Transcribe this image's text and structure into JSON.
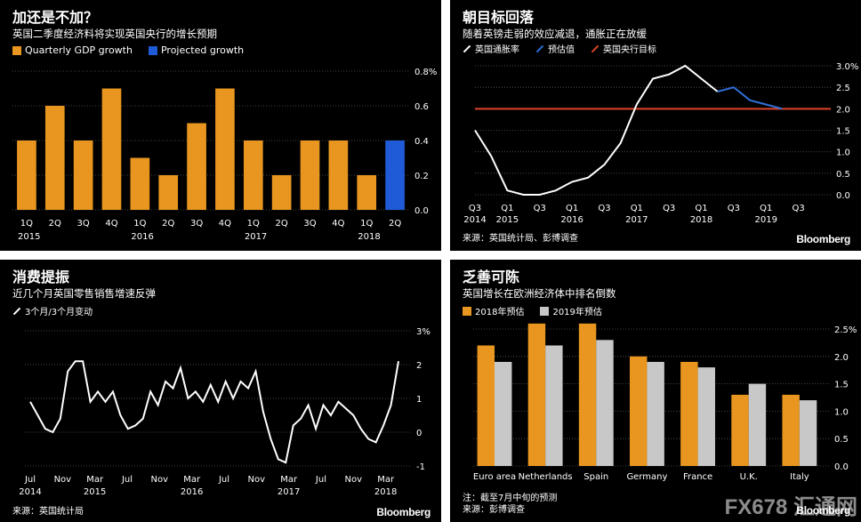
{
  "watermark": "FX678 汇通网",
  "panels": [
    {
      "title": "加还是不加？",
      "subtitle": "英国二季度经济料将实现英国央行的增长预期",
      "legend": [
        "Quarterly GDP growth",
        "Projected growth"
      ],
      "source": "",
      "brand": ""
    },
    {
      "title": "朝目标回落",
      "subtitle": "随着英镑走弱的效应减退，通胀正在放缓",
      "legend": [
        "英国通胀率",
        "预估值",
        "英国央行目标"
      ],
      "source": "来源：英国统计局、彭博调查",
      "brand": "Bloomberg"
    },
    {
      "title": "消费提振",
      "subtitle": "近几个月英国零售销售增速反弹",
      "legend": [
        "3个月/3个月变动"
      ],
      "source": "来源：英国统计局",
      "brand": "Bloomberg"
    },
    {
      "title": "乏善可陈",
      "subtitle": "英国增长在欧洲经济体中排名倒数",
      "legend": [
        "2018年预估",
        "2019年预估"
      ],
      "note": "注：截至7月中旬的预测",
      "source": "来源：彭博调查",
      "brand": "Bloomberg"
    }
  ],
  "chart_data": [
    {
      "type": "bar",
      "categories": [
        "1Q",
        "2Q",
        "3Q",
        "4Q",
        "1Q",
        "2Q",
        "3Q",
        "4Q",
        "1Q",
        "2Q",
        "3Q",
        "4Q",
        "1Q",
        "2Q"
      ],
      "year_labels": [
        "2015",
        "2016",
        "2017",
        "2018"
      ],
      "series": [
        {
          "name": "Quarterly GDP growth",
          "values": [
            0.4,
            0.6,
            0.4,
            0.7,
            0.3,
            0.2,
            0.5,
            0.7,
            0.4,
            0.2,
            0.4,
            0.4,
            0.2,
            null
          ]
        },
        {
          "name": "Projected growth",
          "values": [
            null,
            null,
            null,
            null,
            null,
            null,
            null,
            null,
            null,
            null,
            null,
            null,
            null,
            0.4
          ]
        }
      ],
      "colors": [
        "#e8961f",
        "#1f5bd6"
      ],
      "yticks": [
        "0.8%",
        "0.6",
        "0.4",
        "0.2",
        "0.0"
      ],
      "ylim": [
        0,
        0.8
      ]
    },
    {
      "type": "line",
      "x_ticks": [
        "Q3",
        "Q1",
        "Q3",
        "Q1",
        "Q3",
        "Q1",
        "Q3",
        "Q1",
        "Q3",
        "Q1",
        "Q3"
      ],
      "x_year_labels": [
        "2014",
        "2015",
        "2016",
        "2017",
        "2018",
        "2019"
      ],
      "series": [
        {
          "name": "英国通胀率",
          "values": [
            1.5,
            0.9,
            0.1,
            0.0,
            0.0,
            0.1,
            0.3,
            0.4,
            0.7,
            1.2,
            2.1,
            2.7,
            2.8,
            3.0,
            2.7,
            2.4
          ]
        },
        {
          "name": "预估值",
          "values": [
            2.4,
            2.5,
            2.2,
            2.1,
            2.0
          ]
        },
        {
          "name": "英国央行目标",
          "values": [
            2.0
          ]
        }
      ],
      "colors": [
        "#ffffff",
        "#2f6fd8",
        "#e0432b"
      ],
      "yticks": [
        "3.0%",
        "2.5",
        "2.0",
        "1.5",
        "1.0",
        "0.5",
        "0.0"
      ],
      "ylim": [
        0,
        3.0
      ]
    },
    {
      "type": "line",
      "x_ticks": [
        "Jul",
        "Nov",
        "Mar",
        "Jul",
        "Nov",
        "Mar",
        "Jul",
        "Nov",
        "Mar",
        "Jul",
        "Nov",
        "Mar"
      ],
      "x_year_labels": [
        "2014",
        "2015",
        "2016",
        "2017",
        "2018"
      ],
      "series": [
        {
          "name": "3个月/3个月变动",
          "values": [
            0.9,
            0.5,
            0.1,
            0.0,
            0.4,
            1.8,
            2.1,
            2.1,
            0.9,
            1.2,
            0.9,
            1.2,
            0.5,
            0.1,
            0.2,
            0.4,
            1.2,
            0.8,
            1.5,
            1.3,
            1.9,
            1.0,
            1.2,
            0.9,
            1.4,
            0.9,
            1.5,
            1.0,
            1.5,
            1.3,
            1.8,
            0.6,
            -0.2,
            -0.8,
            -0.9,
            0.2,
            0.4,
            0.8,
            0.1,
            0.8,
            0.5,
            0.9,
            0.7,
            0.5,
            0.1,
            -0.2,
            -0.3,
            0.2,
            0.8,
            2.1
          ]
        }
      ],
      "colors": [
        "#ffffff"
      ],
      "yticks": [
        "3%",
        "2",
        "1",
        "0",
        "-1"
      ],
      "ylim": [
        -1,
        3
      ]
    },
    {
      "type": "bar",
      "categories": [
        "Euro area",
        "Netherlands",
        "Spain",
        "Germany",
        "France",
        "U.K.",
        "Italy"
      ],
      "series": [
        {
          "name": "2018年预估",
          "values": [
            2.2,
            2.6,
            2.6,
            2.0,
            1.9,
            1.3,
            1.3
          ]
        },
        {
          "name": "2019年预估",
          "values": [
            1.9,
            2.2,
            2.3,
            1.9,
            1.8,
            1.5,
            1.2
          ]
        }
      ],
      "colors": [
        "#e8961f",
        "#c8c8c8"
      ],
      "yticks": [
        "2.5%",
        "2.0",
        "1.5",
        "1.0",
        "0.5",
        "0.0"
      ],
      "ylim": [
        0,
        2.5
      ]
    }
  ]
}
